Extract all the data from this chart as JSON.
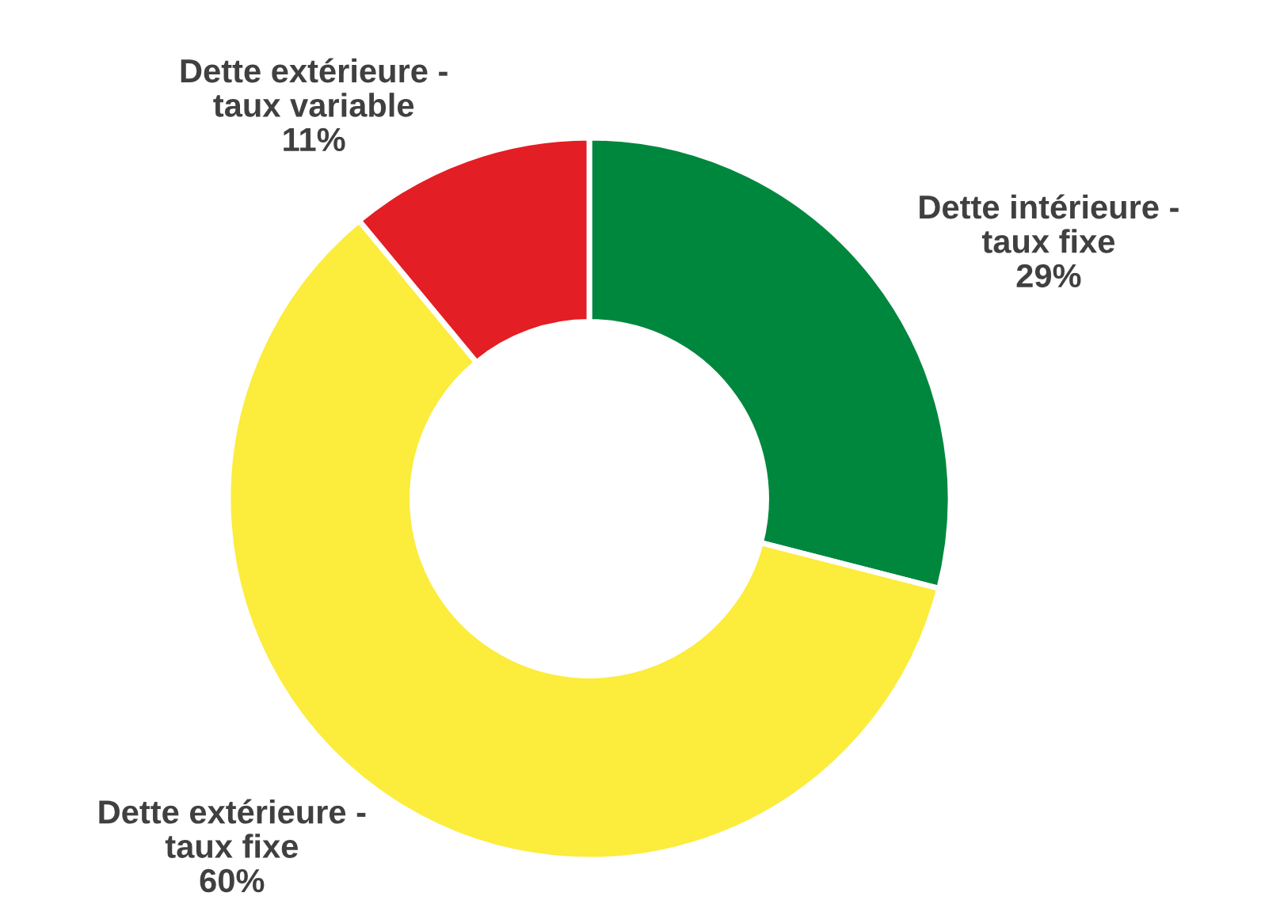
{
  "chart_data": {
    "type": "donut",
    "categories": [
      "Dette intérieure -\ntaux fixe",
      "Dette extérieure -\ntaux fixe",
      "Dette extérieure -\ntaux variable"
    ],
    "values": [
      29,
      60,
      11
    ],
    "colors": [
      "#00873e",
      "#fcec3c",
      "#e31e24"
    ],
    "value_labels": [
      "29%",
      "60%",
      "11%"
    ]
  }
}
